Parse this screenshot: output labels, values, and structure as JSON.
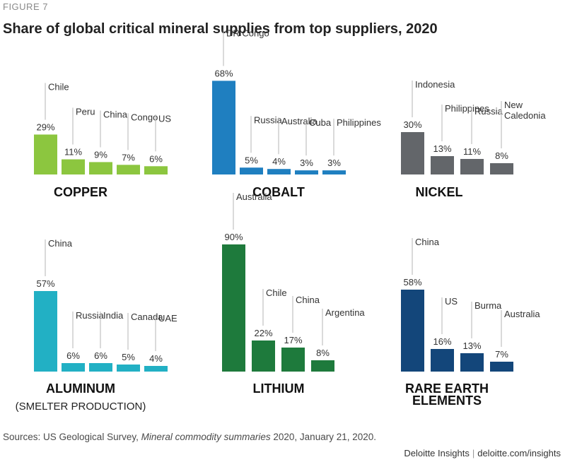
{
  "figure_label": "FIGURE 7",
  "title": "Share of global critical mineral supplies from top suppliers, 2020",
  "sources": {
    "prefix": "Sources: US Geological Survey, ",
    "italic": "Mineral commodity summaries",
    "suffix": " 2020, January 21, 2020."
  },
  "attribution": {
    "brand": "Deloitte Insights",
    "site": "deloitte.com/insights"
  },
  "chart_data": [
    {
      "type": "bar",
      "title": "COPPER",
      "subtitle": "",
      "color": "#8cc63f",
      "unit": "%",
      "categories": [
        "Chile",
        "Peru",
        "China",
        "Congo",
        "US"
      ],
      "values": [
        29,
        11,
        9,
        7,
        6
      ]
    },
    {
      "type": "bar",
      "title": "COBALT",
      "subtitle": "",
      "color": "#1f7fc0",
      "unit": "%",
      "categories": [
        "DR Congo",
        "Russia",
        "Australia",
        "Cuba",
        "Philippines"
      ],
      "values": [
        68,
        5,
        4,
        3,
        3
      ]
    },
    {
      "type": "bar",
      "title": "NICKEL",
      "subtitle": "",
      "color": "#63666a",
      "unit": "%",
      "categories": [
        "Indonesia",
        "Philippines",
        "Russia",
        "New Caledonia"
      ],
      "label_lines": [
        [
          "Indonesia"
        ],
        [
          "Philippines"
        ],
        [
          "Russia"
        ],
        [
          "New",
          "Caledonia"
        ]
      ],
      "values": [
        30,
        13,
        11,
        8
      ]
    },
    {
      "type": "bar",
      "title": "ALUMINUM",
      "subtitle": "(SMELTER PRODUCTION)",
      "color": "#22b0c4",
      "unit": "%",
      "categories": [
        "China",
        "Russia",
        "India",
        "Canada",
        "UAE"
      ],
      "values": [
        57,
        6,
        6,
        5,
        4
      ]
    },
    {
      "type": "bar",
      "title": "LITHIUM",
      "subtitle": "",
      "color": "#1e7a3c",
      "unit": "%",
      "categories": [
        "Australia",
        "Chile",
        "China",
        "Argentina"
      ],
      "values": [
        90,
        22,
        17,
        8
      ]
    },
    {
      "type": "bar",
      "title": "RARE EARTH ELEMENTS",
      "title_lines": [
        "RARE EARTH",
        "ELEMENTS"
      ],
      "subtitle": "",
      "color": "#13467a",
      "unit": "%",
      "categories": [
        "China",
        "US",
        "Burma",
        "Australia"
      ],
      "values": [
        58,
        16,
        13,
        7
      ]
    }
  ]
}
